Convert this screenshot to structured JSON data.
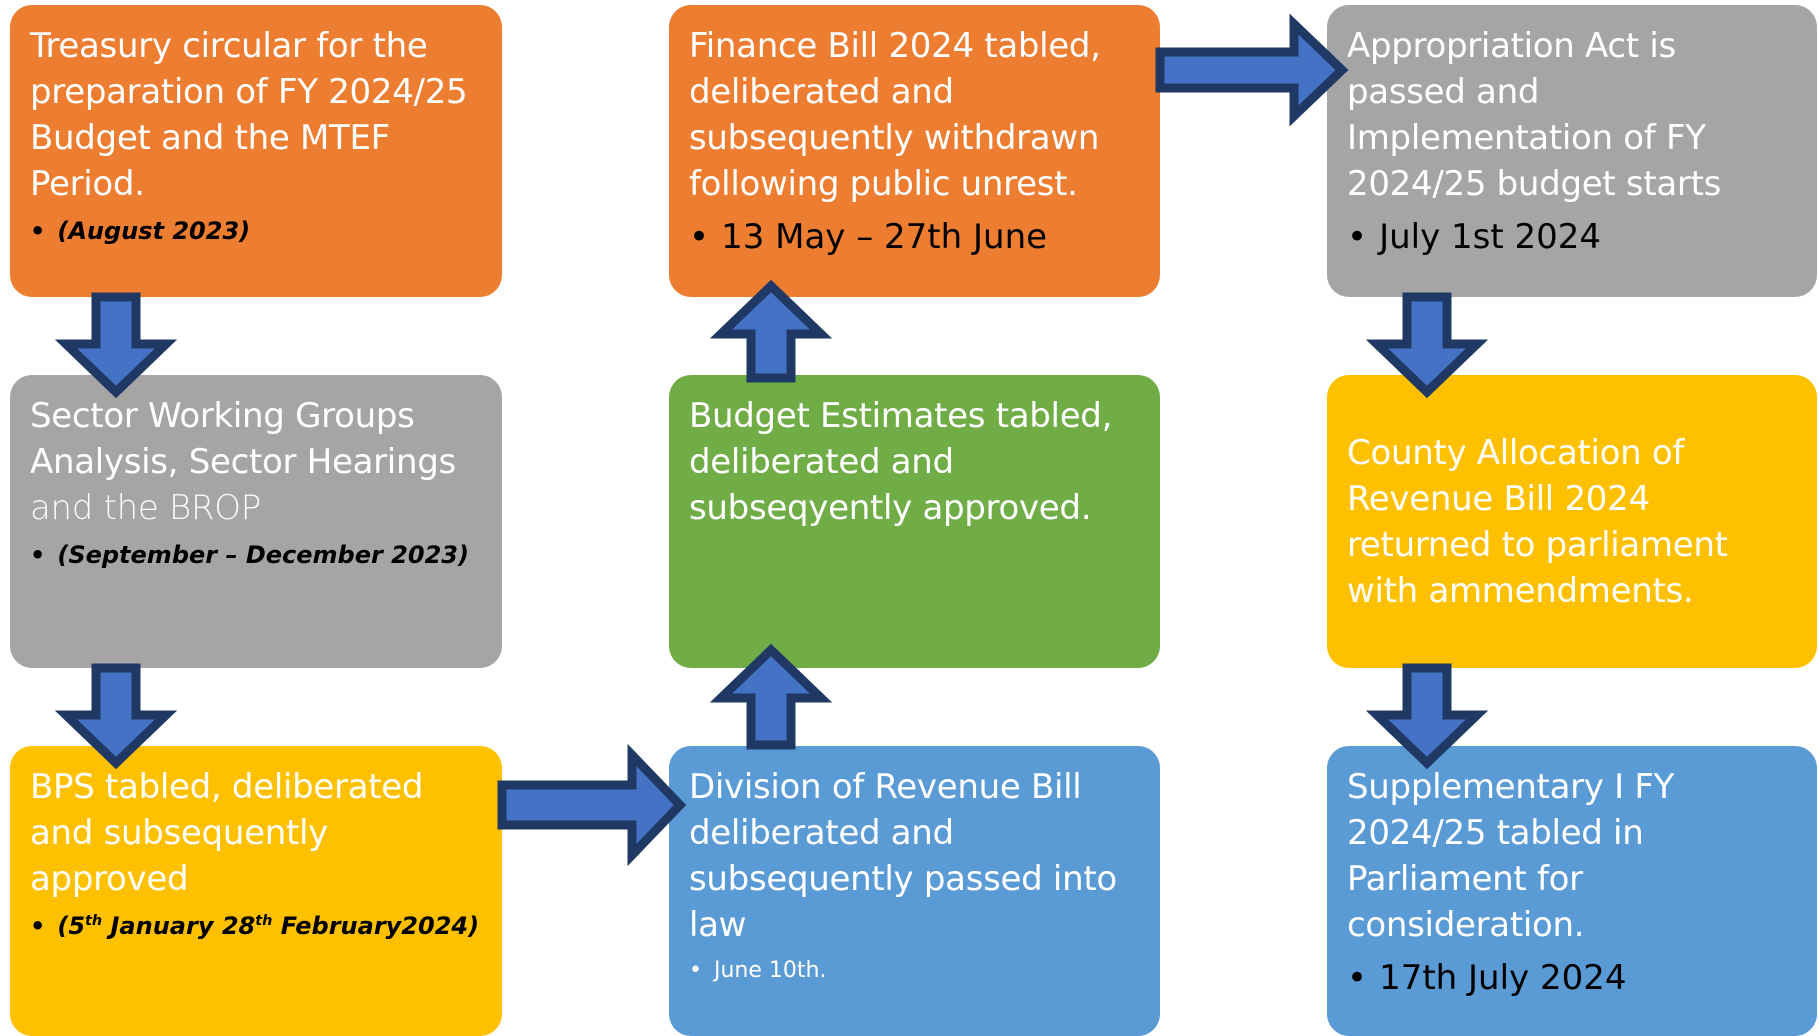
{
  "boxes": [
    {
      "title": "Treasury circular for the preparation of FY 2024/25 Budget and the MTEF Period.",
      "bullet": "(August 2023)"
    },
    {
      "title": "Sector Working Groups Analysis, Sector Hearings",
      "title_light": "and the BROP",
      "bullet": "(September – December 2023)"
    },
    {
      "title": "BPS tabled, deliberated and subsequently approved",
      "bullet_parts": [
        "(5",
        "th",
        " January 28",
        "th",
        " February2024)"
      ]
    },
    {
      "title": "Finance Bill 2024 tabled, deliberated and subsequently withdrawn following public unrest.",
      "bullet": "13 May – 27th June"
    },
    {
      "title": "Budget Estimates tabled, deliberated and subseqyently approved."
    },
    {
      "title": "Division of Revenue Bill deliberated and subsequently passed into law",
      "bullet": "June 10th."
    },
    {
      "title": "Appropriation Act is passed and Implementation of FY 2024/25 budget starts",
      "bullet": "July 1st 2024"
    },
    {
      "title": "County Allocation of Revenue Bill 2024 returned to parliament with ammendments."
    },
    {
      "title": "Supplementary I FY 2024/25 tabled in Parliament for consideration.",
      "bullet": "17th July 2024"
    }
  ]
}
